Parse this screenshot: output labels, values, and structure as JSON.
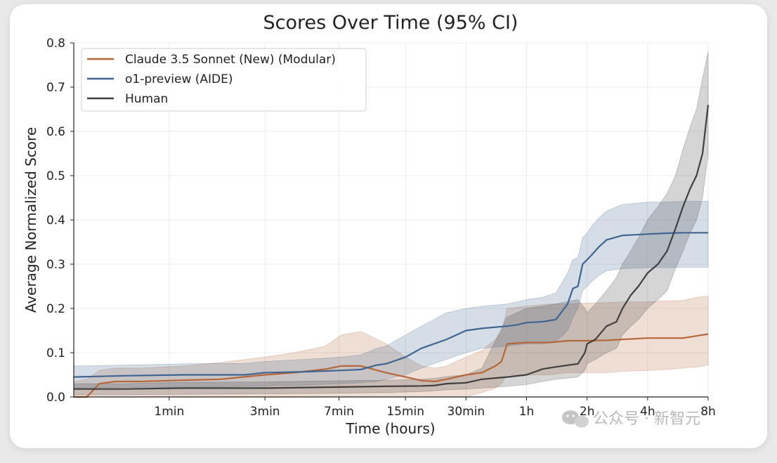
{
  "watermark": {
    "text": "公众号 · 新智元"
  },
  "chart_data": {
    "type": "line",
    "title": "Scores Over Time (95% CI)",
    "xlabel": "Time (hours)",
    "ylabel": "Average Normalized Score",
    "ylim": [
      0,
      0.8
    ],
    "yticks": [
      0.0,
      0.1,
      0.2,
      0.3,
      0.4,
      0.5,
      0.6,
      0.7,
      0.8
    ],
    "x_scale": "log",
    "xlim": [
      0.0056,
      8
    ],
    "xticks": [
      {
        "value": 0.0167,
        "label": "1min"
      },
      {
        "value": 0.05,
        "label": "3min"
      },
      {
        "value": 0.1167,
        "label": "7min"
      },
      {
        "value": 0.25,
        "label": "15min"
      },
      {
        "value": 0.5,
        "label": "30min"
      },
      {
        "value": 1,
        "label": "1h"
      },
      {
        "value": 2,
        "label": "2h"
      },
      {
        "value": 4,
        "label": "4h"
      },
      {
        "value": 8,
        "label": "8h"
      }
    ],
    "grid": true,
    "legend_position": "top-left",
    "series": [
      {
        "name": "Claude 3.5 Sonnet (New) (Modular)",
        "color": "#b5673a",
        "x": [
          0.0056,
          0.0065,
          0.0075,
          0.009,
          0.012,
          0.02,
          0.03,
          0.05,
          0.07,
          0.1,
          0.12,
          0.15,
          0.2,
          0.25,
          0.3,
          0.35,
          0.4,
          0.5,
          0.6,
          0.7,
          0.75,
          0.8,
          1.0,
          1.3,
          1.6,
          2,
          2.5,
          3,
          4,
          5,
          6,
          7,
          8
        ],
        "y": [
          0.0,
          0.0,
          0.03,
          0.035,
          0.035,
          0.038,
          0.04,
          0.05,
          0.055,
          0.063,
          0.07,
          0.07,
          0.055,
          0.045,
          0.037,
          0.035,
          0.04,
          0.05,
          0.055,
          0.07,
          0.08,
          0.12,
          0.123,
          0.123,
          0.127,
          0.127,
          0.128,
          0.13,
          0.133,
          0.133,
          0.133,
          0.138,
          0.142
        ],
        "ci_low": [
          0.0,
          0.0,
          0.0,
          0.0,
          0.0,
          0.0,
          0.0,
          0.0,
          0.0,
          0.0,
          0.0,
          0.0,
          0.0,
          0.0,
          0.0,
          0.0,
          0.0,
          0.0,
          0.01,
          0.02,
          0.03,
          0.05,
          0.05,
          0.05,
          0.055,
          0.055,
          0.055,
          0.058,
          0.06,
          0.062,
          0.065,
          0.068,
          0.072
        ],
        "ci_high": [
          0.035,
          0.04,
          0.06,
          0.065,
          0.065,
          0.07,
          0.078,
          0.09,
          0.1,
          0.115,
          0.14,
          0.148,
          0.12,
          0.09,
          0.07,
          0.065,
          0.07,
          0.09,
          0.105,
          0.13,
          0.145,
          0.2,
          0.205,
          0.21,
          0.21,
          0.212,
          0.213,
          0.215,
          0.215,
          0.217,
          0.218,
          0.225,
          0.228
        ]
      },
      {
        "name": "o1-preview (AIDE)",
        "color": "#3f6592",
        "x": [
          0.0056,
          0.01,
          0.02,
          0.04,
          0.05,
          0.08,
          0.12,
          0.15,
          0.18,
          0.2,
          0.25,
          0.3,
          0.4,
          0.5,
          0.6,
          0.8,
          0.9,
          1.0,
          1.2,
          1.4,
          1.6,
          1.7,
          1.8,
          1.9,
          2.0,
          2.1,
          2.3,
          2.5,
          3,
          4,
          5,
          6,
          8
        ],
        "y": [
          0.045,
          0.048,
          0.05,
          0.05,
          0.055,
          0.057,
          0.06,
          0.062,
          0.072,
          0.075,
          0.09,
          0.11,
          0.13,
          0.15,
          0.155,
          0.16,
          0.163,
          0.168,
          0.17,
          0.175,
          0.21,
          0.245,
          0.25,
          0.3,
          0.31,
          0.32,
          0.34,
          0.355,
          0.365,
          0.368,
          0.37,
          0.371,
          0.371
        ],
        "ci_low": [
          0.02,
          0.022,
          0.022,
          0.024,
          0.025,
          0.027,
          0.03,
          0.032,
          0.035,
          0.04,
          0.05,
          0.065,
          0.085,
          0.1,
          0.11,
          0.115,
          0.118,
          0.12,
          0.12,
          0.125,
          0.15,
          0.18,
          0.2,
          0.24,
          0.25,
          0.26,
          0.275,
          0.285,
          0.29,
          0.292,
          0.292,
          0.293,
          0.293
        ],
        "ci_high": [
          0.07,
          0.072,
          0.075,
          0.076,
          0.08,
          0.085,
          0.09,
          0.095,
          0.11,
          0.115,
          0.14,
          0.16,
          0.19,
          0.2,
          0.205,
          0.21,
          0.215,
          0.22,
          0.225,
          0.235,
          0.28,
          0.31,
          0.315,
          0.36,
          0.37,
          0.385,
          0.405,
          0.42,
          0.435,
          0.44,
          0.44,
          0.442,
          0.442
        ]
      },
      {
        "name": "Human",
        "color": "#404040",
        "x": [
          0.0056,
          0.01,
          0.02,
          0.05,
          0.1,
          0.2,
          0.3,
          0.35,
          0.4,
          0.5,
          0.6,
          0.8,
          1.0,
          1.2,
          1.4,
          1.8,
          1.95,
          2.0,
          2.2,
          2.5,
          2.8,
          3,
          3.3,
          3.6,
          4,
          4.5,
          5,
          5.5,
          6,
          6.5,
          7,
          7.5,
          8
        ],
        "y": [
          0.018,
          0.018,
          0.02,
          0.02,
          0.022,
          0.024,
          0.025,
          0.026,
          0.03,
          0.032,
          0.04,
          0.045,
          0.05,
          0.063,
          0.068,
          0.075,
          0.1,
          0.12,
          0.13,
          0.16,
          0.17,
          0.2,
          0.23,
          0.25,
          0.28,
          0.3,
          0.33,
          0.38,
          0.43,
          0.47,
          0.5,
          0.55,
          0.66
        ],
        "ci_low": [
          0.005,
          0.005,
          0.006,
          0.007,
          0.008,
          0.01,
          0.012,
          0.014,
          0.016,
          0.018,
          0.02,
          0.024,
          0.028,
          0.035,
          0.04,
          0.045,
          0.06,
          0.075,
          0.085,
          0.1,
          0.11,
          0.14,
          0.16,
          0.175,
          0.2,
          0.22,
          0.24,
          0.29,
          0.33,
          0.37,
          0.4,
          0.45,
          0.55
        ],
        "ci_high": [
          0.03,
          0.03,
          0.033,
          0.034,
          0.036,
          0.038,
          0.04,
          0.042,
          0.046,
          0.05,
          0.065,
          0.18,
          0.2,
          0.205,
          0.21,
          0.22,
          0.2,
          0.19,
          0.21,
          0.24,
          0.27,
          0.3,
          0.33,
          0.36,
          0.4,
          0.43,
          0.46,
          0.5,
          0.56,
          0.61,
          0.65,
          0.72,
          0.78
        ]
      }
    ]
  }
}
